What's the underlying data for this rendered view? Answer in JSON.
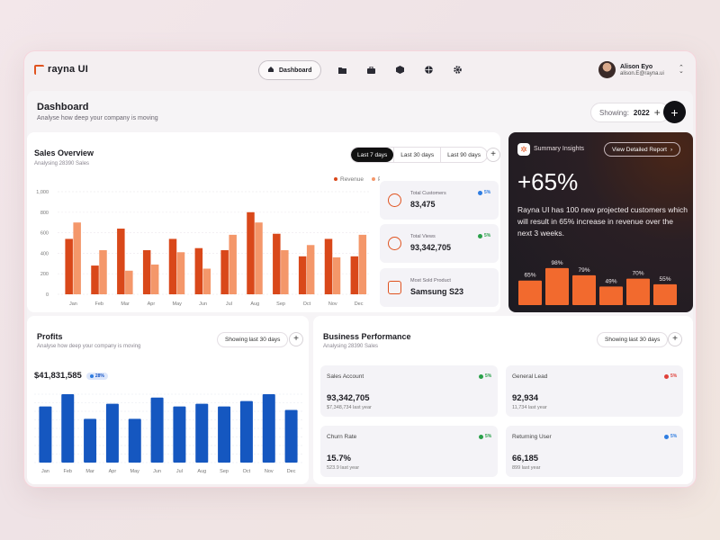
{
  "app": {
    "logo_text": "rayna UI"
  },
  "nav": {
    "active_label": "Dashboard",
    "icons": [
      "folder-icon",
      "briefcase-icon",
      "cube-icon",
      "globe-icon",
      "settings-icon"
    ]
  },
  "user": {
    "name": "Alison Eyo",
    "email": "alison.E@rayna.ui"
  },
  "header": {
    "title": "Dashboard",
    "subtitle": "Analyse how deep your company is moving",
    "showing_label": "Showing:",
    "showing_year": "2022",
    "plus": "+"
  },
  "sales": {
    "title": "Sales Overview",
    "subtitle": "Analysing 28390 Sales",
    "ranges": [
      "Last 7 days",
      "Last 30 days",
      "Last 90 days"
    ],
    "active_range": "Last 7 days",
    "stats": [
      {
        "label": "Total Customers",
        "value": "83,475",
        "change": "5%",
        "change_color": "#2f7de1"
      },
      {
        "label": "Total Views",
        "value": "93,342,705",
        "change": "5%",
        "change_color": "#2aa04a"
      },
      {
        "label": "Most Sold Product",
        "value": "Samsung S23"
      }
    ]
  },
  "insights": {
    "title": "Summary Insights",
    "button": "View Detailed Report",
    "headline": "+65%",
    "text": "Rayna UI has 100 new projected customers which will result in 65% increase in revenue over the next 3 weeks."
  },
  "profits": {
    "title": "Profits",
    "subtitle": "Analyse how deep your company is moving",
    "showing": "Showing last 30 days",
    "total": "$41,831,585",
    "change": "28%"
  },
  "business": {
    "title": "Business Performance",
    "subtitle": "Analysing 28390 Sales",
    "showing": "Showing last 30 days",
    "cards": [
      {
        "label": "Sales Account",
        "value": "93,342,705",
        "sub": "$7,348,734 last year",
        "change": "5%",
        "change_color": "#2aa04a"
      },
      {
        "label": "General Lead",
        "value": "92,934",
        "sub": "11,734 last year",
        "change": "5%",
        "change_color": "#e0403a"
      },
      {
        "label": "Churn Rate",
        "value": "15.7%",
        "sub": "523.9 last year",
        "change": "5%",
        "change_color": "#2aa04a"
      },
      {
        "label": "Returning User",
        "value": "66,185",
        "sub": "899 last year",
        "change": "5%",
        "change_color": "#2f7de1"
      }
    ]
  },
  "chart_data": [
    {
      "type": "bar",
      "categories": [
        "Jan",
        "Feb",
        "Mar",
        "Apr",
        "May",
        "Jun",
        "Jul",
        "Aug",
        "Sep",
        "Oct",
        "Nov",
        "Dec"
      ],
      "series": [
        {
          "name": "Revenue",
          "color": "#d9481a",
          "values": [
            540,
            280,
            640,
            430,
            540,
            450,
            430,
            800,
            590,
            370,
            540,
            370
          ]
        },
        {
          "name": "Purchase",
          "color": "#f4976a",
          "values": [
            700,
            430,
            230,
            290,
            410,
            250,
            580,
            700,
            430,
            480,
            360,
            580
          ]
        }
      ],
      "yticks": [
        "0",
        "200",
        "400",
        "600",
        "800",
        "1,000"
      ],
      "ylim": [
        0,
        1000
      ],
      "legend": "top-right"
    },
    {
      "type": "bar",
      "categories": [
        "65%",
        "98%",
        "79%",
        "49%",
        "70%",
        "55%"
      ],
      "values": [
        65,
        98,
        79,
        49,
        70,
        55
      ],
      "color": "#f26a2e"
    },
    {
      "type": "bar",
      "categories": [
        "Jan",
        "Feb",
        "Mar",
        "Apr",
        "May",
        "Jun",
        "Jul",
        "Aug",
        "Sep",
        "Oct",
        "Nov",
        "Dec"
      ],
      "values": [
        82,
        100,
        64,
        86,
        64,
        95,
        82,
        86,
        82,
        90,
        100,
        77
      ],
      "color": "#1557c0",
      "ylim": [
        0,
        100
      ]
    }
  ]
}
